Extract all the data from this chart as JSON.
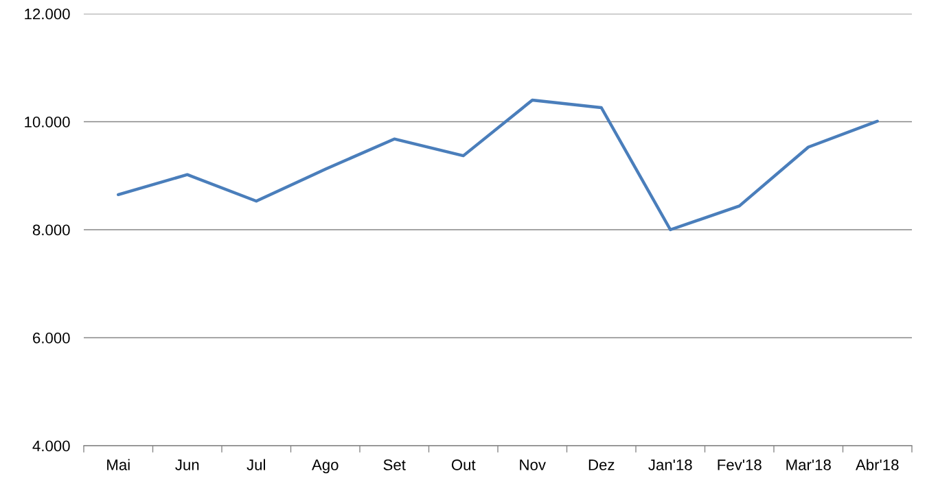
{
  "chart_data": {
    "type": "line",
    "categories": [
      "Mai",
      "Jun",
      "Jul",
      "Ago",
      "Set",
      "Out",
      "Nov",
      "Dez",
      "Jan'18",
      "Fev'18",
      "Mar'18",
      "Abr'18"
    ],
    "series": [
      {
        "color": "#4a7ebb",
        "values": [
          8650,
          9020,
          8530,
          9120,
          9680,
          9370,
          10400,
          10260,
          8000,
          8440,
          9530,
          10010
        ]
      }
    ],
    "ylim": [
      4000,
      12000
    ],
    "yticks": [
      {
        "value": 4000,
        "label": "4.000"
      },
      {
        "value": 6000,
        "label": "6.000"
      },
      {
        "value": 8000,
        "label": "8.000"
      },
      {
        "value": 10000,
        "label": "10.000"
      },
      {
        "value": 12000,
        "label": "12.000"
      }
    ],
    "grid": "y",
    "legend": false,
    "marker": "none",
    "line_style": "solid"
  }
}
